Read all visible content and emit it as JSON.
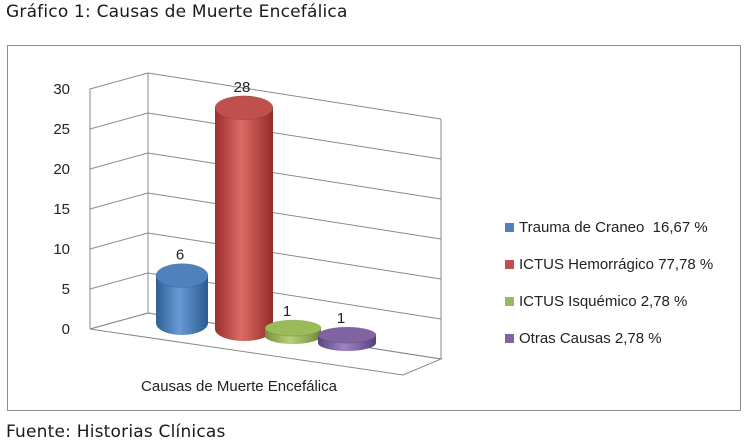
{
  "figure_title": "Gráfico 1: Causas de Muerte Encefálica",
  "source_note": "Fuente: Historias Clínicas",
  "chart_data": {
    "type": "bar",
    "subtype": "3d-cylinder",
    "categories": [
      "Trauma de Craneo",
      "ICTUS Hemorrágico",
      "ICTUS Isquémico",
      "Otras Causas"
    ],
    "values": [
      6,
      28,
      1,
      1
    ],
    "data_labels": [
      "6",
      "28",
      "1",
      "1"
    ],
    "colors": [
      "#4f81bd",
      "#c0504d",
      "#9bbb59",
      "#8064a2"
    ],
    "xlabel": "Causas de Muerte Encefálica",
    "ylabel": "",
    "ylim": [
      0,
      30
    ],
    "yticks": [
      0,
      5,
      10,
      15,
      20,
      25,
      30
    ],
    "grid": true,
    "legend_position": "right",
    "legend": [
      {
        "label": "Trauma de Craneo  16,67 %",
        "color": "#4f81bd"
      },
      {
        "label": "ICTUS Hemorrágico 77,78 %",
        "color": "#c0504d"
      },
      {
        "label": "ICTUS Isquémico 2,78 %",
        "color": "#9bbb59"
      },
      {
        "label": "Otras Causas 2,78 %",
        "color": "#8064a2"
      }
    ]
  }
}
